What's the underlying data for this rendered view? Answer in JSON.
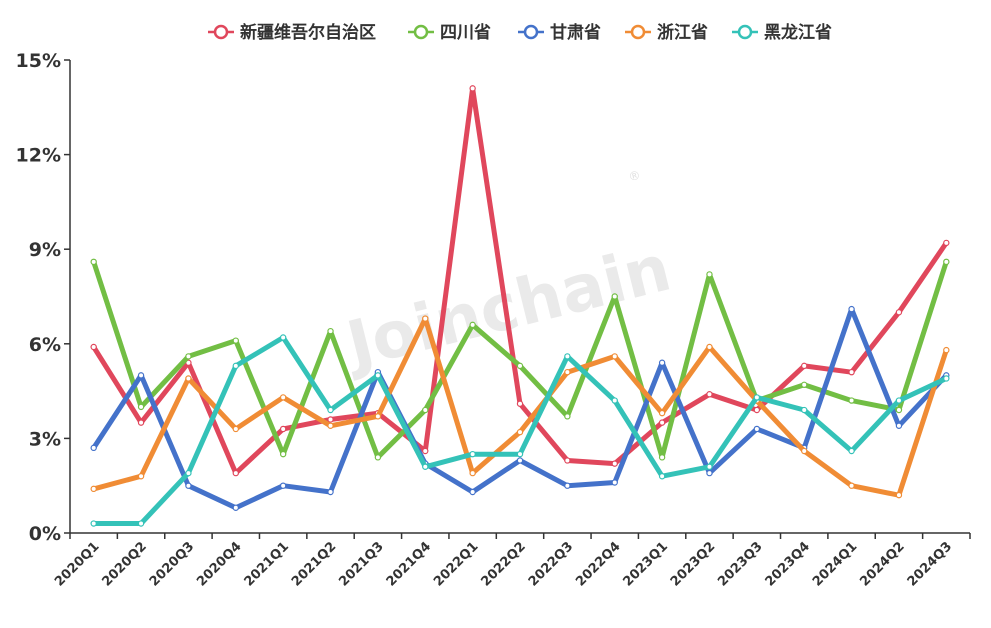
{
  "watermark": {
    "text": "Joinchain",
    "mark": "®"
  },
  "chart_data": {
    "type": "line",
    "x": [
      "2020Q1",
      "2020Q2",
      "2020Q3",
      "2020Q4",
      "2021Q1",
      "2021Q2",
      "2021Q3",
      "2021Q4",
      "2022Q1",
      "2022Q2",
      "2022Q3",
      "2022Q4",
      "2023Q1",
      "2023Q2",
      "2023Q3",
      "2023Q4",
      "2024Q1",
      "2024Q2",
      "2024Q3"
    ],
    "y_ticks": [
      "0%",
      "3%",
      "6%",
      "9%",
      "12%",
      "15%"
    ],
    "ylim": [
      0,
      15
    ],
    "y_unit": "%",
    "grid": false,
    "legend_position": "top",
    "series": [
      {
        "name": "新疆维吾尔自治区",
        "color": "#e0475c",
        "values": [
          5.9,
          3.5,
          5.4,
          1.9,
          3.3,
          3.6,
          3.8,
          2.6,
          14.1,
          4.1,
          2.3,
          2.2,
          3.5,
          4.4,
          3.9,
          5.3,
          5.1,
          7.0,
          9.2
        ]
      },
      {
        "name": "四川省",
        "color": "#72be44",
        "values": [
          8.6,
          4.0,
          5.6,
          6.1,
          2.5,
          6.4,
          2.4,
          3.9,
          6.6,
          5.3,
          3.7,
          7.5,
          2.4,
          8.2,
          4.2,
          4.7,
          4.2,
          3.9,
          8.6
        ]
      },
      {
        "name": "甘肃省",
        "color": "#4472ca",
        "values": [
          2.7,
          5.0,
          1.5,
          0.8,
          1.5,
          1.3,
          5.1,
          2.2,
          1.3,
          2.3,
          1.5,
          1.6,
          5.4,
          1.9,
          3.3,
          2.7,
          7.1,
          3.4,
          5.0
        ]
      },
      {
        "name": "浙江省",
        "color": "#f08c35",
        "values": [
          1.4,
          1.8,
          4.9,
          3.3,
          4.3,
          3.4,
          3.7,
          6.8,
          1.9,
          3.2,
          5.1,
          5.6,
          3.8,
          5.9,
          4.2,
          2.6,
          1.5,
          1.2,
          5.8
        ]
      },
      {
        "name": "黑龙江省",
        "color": "#34c2b8",
        "values": [
          0.3,
          0.3,
          1.9,
          5.3,
          6.2,
          3.9,
          5.0,
          2.1,
          2.5,
          2.5,
          5.6,
          4.2,
          1.8,
          2.1,
          4.3,
          3.9,
          2.6,
          4.2,
          4.9
        ]
      }
    ]
  }
}
